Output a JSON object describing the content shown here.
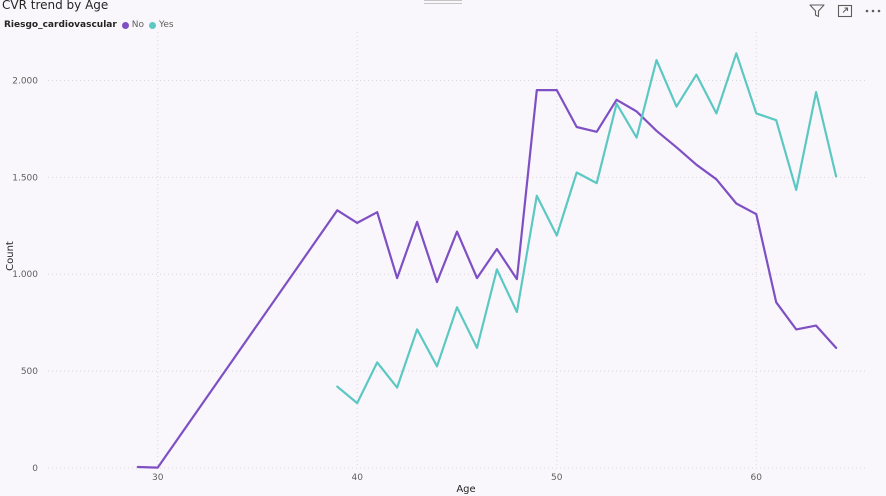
{
  "visual": {
    "title": "CVR trend by Age",
    "toolbar": [
      {
        "name": "filter-icon"
      },
      {
        "name": "focus-mode-icon"
      },
      {
        "name": "more-options-icon"
      }
    ]
  },
  "legend": {
    "title": "Riesgo_cardiovascular",
    "position": "top-left",
    "items": [
      {
        "label": "No",
        "color": "#7f4fc4"
      },
      {
        "label": "Yes",
        "color": "#5cc8c4"
      }
    ]
  },
  "chart_data": {
    "type": "line",
    "title": "CVR trend by Age",
    "xlabel": "Age",
    "ylabel": "Count",
    "xlim": [
      24.5,
      65.5
    ],
    "ylim": [
      0,
      2250
    ],
    "x_ticks": [
      30,
      40,
      50,
      60
    ],
    "y_ticks": [
      0,
      500,
      1000,
      1500,
      2000
    ],
    "y_tick_labels": [
      "0",
      "500",
      "1.000",
      "1.500",
      "2.000"
    ],
    "grid": true,
    "legend": "top-left",
    "series": [
      {
        "name": "No",
        "color": "#7f4fc4",
        "points": [
          [
            29,
            5
          ],
          [
            30,
            2
          ],
          [
            39,
            1330
          ],
          [
            40,
            1265
          ],
          [
            41,
            1320
          ],
          [
            42,
            980
          ],
          [
            43,
            1270
          ],
          [
            44,
            960
          ],
          [
            45,
            1220
          ],
          [
            46,
            980
          ],
          [
            47,
            1130
          ],
          [
            48,
            975
          ],
          [
            49,
            1950
          ],
          [
            50,
            1950
          ],
          [
            51,
            1760
          ],
          [
            52,
            1735
          ],
          [
            53,
            1900
          ],
          [
            54,
            1840
          ],
          [
            55,
            1740
          ],
          [
            56,
            1655
          ],
          [
            57,
            1565
          ],
          [
            58,
            1490
          ],
          [
            59,
            1365
          ],
          [
            60,
            1310
          ],
          [
            61,
            855
          ],
          [
            62,
            715
          ],
          [
            63,
            735
          ],
          [
            64,
            620
          ]
        ]
      },
      {
        "name": "Yes",
        "color": "#5cc8c4",
        "points": [
          [
            39,
            420
          ],
          [
            40,
            335
          ],
          [
            41,
            545
          ],
          [
            42,
            415
          ],
          [
            43,
            715
          ],
          [
            44,
            525
          ],
          [
            45,
            830
          ],
          [
            46,
            620
          ],
          [
            47,
            1025
          ],
          [
            48,
            805
          ],
          [
            49,
            1405
          ],
          [
            50,
            1200
          ],
          [
            51,
            1525
          ],
          [
            52,
            1470
          ],
          [
            53,
            1880
          ],
          [
            54,
            1705
          ],
          [
            55,
            2105
          ],
          [
            56,
            1865
          ],
          [
            57,
            2030
          ],
          [
            58,
            1830
          ],
          [
            59,
            2140
          ],
          [
            60,
            1830
          ],
          [
            61,
            1795
          ],
          [
            62,
            1435
          ],
          [
            63,
            1940
          ],
          [
            64,
            1505
          ]
        ]
      }
    ]
  }
}
